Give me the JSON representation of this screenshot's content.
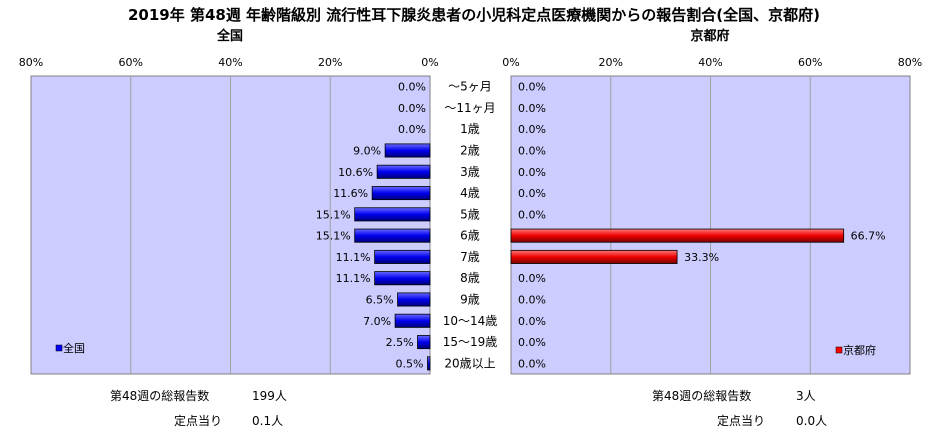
{
  "chart_data": {
    "type": "bar",
    "title": "2019年 第48週 年齢階級別 流行性耳下腺炎患者の小児科定点医療機関からの報告割合(全国、京都府)",
    "categories": [
      "～5ヶ月",
      "～11ヶ月",
      "1歳",
      "2歳",
      "3歳",
      "4歳",
      "5歳",
      "6歳",
      "7歳",
      "8歳",
      "9歳",
      "10～14歳",
      "15～19歳",
      "20歳以上"
    ],
    "xlim": [
      0,
      80
    ],
    "x_tick_values": [
      0,
      20,
      40,
      60,
      80
    ],
    "grid": true,
    "series": [
      {
        "name": "全国",
        "panel_title": "全国",
        "color": "#0000ff",
        "values": [
          0.0,
          0.0,
          0.0,
          9.0,
          10.6,
          11.6,
          15.1,
          15.1,
          11.1,
          11.1,
          6.5,
          7.0,
          2.5,
          0.5
        ],
        "labels": [
          "0.0%",
          "0.0%",
          "0.0%",
          "9.0%",
          "10.6%",
          "11.6%",
          "15.1%",
          "15.1%",
          "11.1%",
          "11.1%",
          "6.5%",
          "7.0%",
          "2.5%",
          "0.5%"
        ],
        "legend": "全国",
        "legend_placement": "bottom-left"
      },
      {
        "name": "京都府",
        "panel_title": "京都府",
        "color": "#ff0000",
        "values": [
          0.0,
          0.0,
          0.0,
          0.0,
          0.0,
          0.0,
          0.0,
          66.7,
          33.3,
          0.0,
          0.0,
          0.0,
          0.0,
          0.0
        ],
        "labels": [
          "0.0%",
          "0.0%",
          "0.0%",
          "0.0%",
          "0.0%",
          "0.0%",
          "0.0%",
          "66.7%",
          "33.3%",
          "0.0%",
          "0.0%",
          "0.0%",
          "0.0%",
          "0.0%"
        ],
        "legend": "京都府",
        "legend_placement": "bottom-right"
      }
    ],
    "tick_labels_left": [
      "80%",
      "60%",
      "40%",
      "20%",
      "0%"
    ],
    "tick_labels_right": [
      "0%",
      "20%",
      "40%",
      "60%",
      "80%"
    ]
  },
  "footer": {
    "left": {
      "total_label": "第48週の総報告数",
      "total_value": "199人",
      "per_label": "定点当り",
      "per_value": "0.1人"
    },
    "right": {
      "total_label": "第48週の総報告数",
      "total_value": "3人",
      "per_label": "定点当り",
      "per_value": "0.0人"
    }
  },
  "colors": {
    "plot_background": "#ccccff",
    "grid": "#a0a0a0",
    "national_bar": "#0000ff",
    "kyoto_bar": "#ff0000"
  }
}
